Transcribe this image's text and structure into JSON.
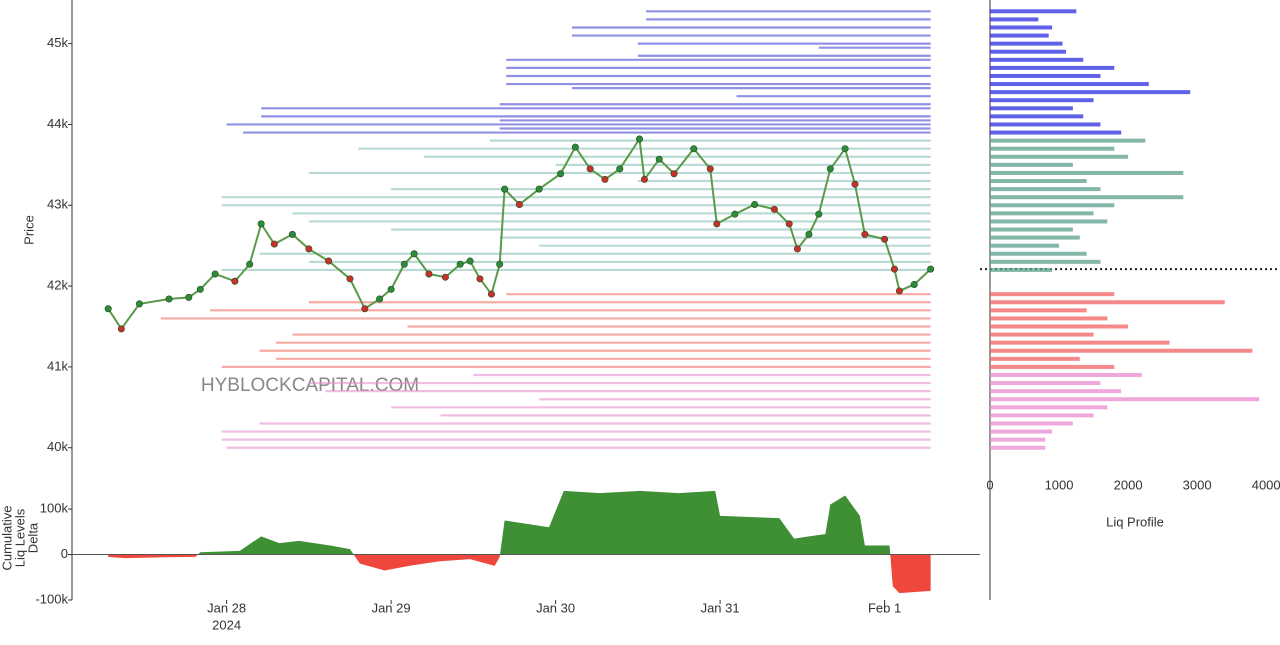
{
  "chart_data": [
    {
      "type": "line",
      "ylabel": "Price",
      "watermark": "HYBLOCKCAPITAL.COM",
      "xlim": [
        27.06,
        32.58
      ],
      "ylim": [
        39910,
        45540
      ],
      "xticks": [
        {
          "value": 28,
          "label": "Jan 28"
        },
        {
          "value": 29,
          "label": "Jan 29"
        },
        {
          "value": 30,
          "label": "Jan 30"
        },
        {
          "value": 31,
          "label": "Jan 31"
        },
        {
          "value": 32,
          "label": "Feb 1"
        }
      ],
      "x_sublabel": "2024",
      "yticks": [
        {
          "value": 40000,
          "label": "40k"
        },
        {
          "value": 41000,
          "label": "41k"
        },
        {
          "value": 42000,
          "label": "42k"
        },
        {
          "value": 43000,
          "label": "43k"
        },
        {
          "value": 44000,
          "label": "44k"
        },
        {
          "value": 45000,
          "label": "45k"
        }
      ],
      "x": [
        27.28,
        27.36,
        27.47,
        27.65,
        27.77,
        27.84,
        27.93,
        28.05,
        28.14,
        28.21,
        28.29,
        28.4,
        28.5,
        28.62,
        28.75,
        28.84,
        28.93,
        29.0,
        29.08,
        29.14,
        29.23,
        29.33,
        29.42,
        29.48,
        29.54,
        29.61,
        29.66,
        29.69,
        29.78,
        29.9,
        30.03,
        30.12,
        30.21,
        30.3,
        30.39,
        30.51,
        30.54,
        30.63,
        30.72,
        30.84,
        30.94,
        30.98,
        31.09,
        31.21,
        31.33,
        31.42,
        31.47,
        31.54,
        31.6,
        31.67,
        31.76,
        31.82,
        31.88,
        32.0,
        32.06,
        32.09,
        32.18,
        32.28
      ],
      "series": [
        {
          "color": "#5a9a4a",
          "values": [
            41720,
            41470,
            41780,
            41840,
            41860,
            41960,
            42150,
            42060,
            42270,
            42770,
            42520,
            42640,
            42460,
            42310,
            42090,
            41720,
            41840,
            41960,
            42270,
            42400,
            42150,
            42110,
            42270,
            42310,
            42090,
            41900,
            42270,
            43200,
            43010,
            43200,
            43390,
            43720,
            43450,
            43320,
            43450,
            43820,
            43320,
            43570,
            43390,
            43700,
            43450,
            42770,
            42890,
            43010,
            42950,
            42770,
            42460,
            42640,
            42890,
            43450,
            43700,
            43260,
            42640,
            42580,
            42210,
            41940,
            42020,
            42210
          ]
        }
      ],
      "liq_levels": [
        {
          "color": "#3434d0",
          "prices": [
            45400,
            45300,
            45200,
            45100,
            45000,
            44950,
            44850,
            44800,
            44700,
            44600,
            44500,
            44450,
            44350,
            44250,
            44200,
            44100,
            44050,
            44000,
            43950,
            43900
          ],
          "starts": [
            30.55,
            30.55,
            30.1,
            30.1,
            30.5,
            31.6,
            30.5,
            29.7,
            29.7,
            29.7,
            29.7,
            30.1,
            31.1,
            29.66,
            28.21,
            28.21,
            29.66,
            28.0,
            29.66,
            28.1
          ]
        },
        {
          "color": "#7fbcb5",
          "prices": [
            43800,
            43700,
            43600,
            43500,
            43400,
            43300,
            43200,
            43100,
            43000,
            42900,
            42800,
            42700,
            42600,
            42500,
            42400,
            42300,
            42200
          ],
          "starts": [
            29.6,
            28.8,
            29.2,
            30.0,
            28.5,
            30.5,
            29.0,
            27.97,
            27.97,
            28.4,
            28.5,
            29.0,
            29.66,
            29.9,
            28.2,
            28.5,
            27.97
          ]
        },
        {
          "color": "#f0665a",
          "prices": [
            41900,
            41800,
            41700,
            41600,
            41500,
            41400,
            41300,
            41200,
            41100,
            41000
          ],
          "starts": [
            29.7,
            28.5,
            27.9,
            27.6,
            29.1,
            28.4,
            28.3,
            28.2,
            28.3,
            27.97
          ]
        },
        {
          "color": "#e886cc",
          "prices": [
            40900,
            40800,
            40700,
            40600,
            40500,
            40400,
            40300,
            40200,
            40100,
            40000
          ],
          "starts": [
            29.5,
            28.5,
            28.6,
            29.9,
            29.0,
            29.3,
            28.2,
            27.97,
            27.97,
            28.0
          ]
        }
      ]
    },
    {
      "type": "area",
      "ylabel": [
        "Cumulative",
        "Liq Levels",
        "Delta"
      ],
      "xlim": [
        27.06,
        32.58
      ],
      "ylim": [
        -100000,
        175000
      ],
      "yticks": [
        {
          "value": -100000,
          "label": "-100k"
        },
        0,
        {
          "value": 100000,
          "label": "100k"
        }
      ],
      "x": [
        27.28,
        27.38,
        27.62,
        27.81,
        27.84,
        28.08,
        28.21,
        28.32,
        28.44,
        28.63,
        28.75,
        28.81,
        28.96,
        29.11,
        29.29,
        29.48,
        29.63,
        29.66,
        29.69,
        29.96,
        30.05,
        30.27,
        30.51,
        30.75,
        30.97,
        31.0,
        31.36,
        31.45,
        31.54,
        31.64,
        31.67,
        31.76,
        31.85,
        31.88,
        32.03,
        32.05,
        32.09,
        32.28
      ],
      "values": [
        -5000,
        -8000,
        -6000,
        -5000,
        5000,
        8000,
        40000,
        25000,
        30000,
        20000,
        12000,
        -20000,
        -35000,
        -25000,
        -15000,
        -10000,
        -25000,
        -5000,
        75000,
        60000,
        140000,
        135000,
        140000,
        135000,
        140000,
        85000,
        80000,
        35000,
        40000,
        45000,
        110000,
        130000,
        85000,
        20000,
        20000,
        -70000,
        -85000,
        -80000
      ],
      "colors": {
        "positive": "#3f8f35",
        "negative": "#f0473c"
      }
    },
    {
      "type": "bar",
      "xlabel": "Liq Profile",
      "xlim": [
        0,
        4200
      ],
      "xticks": [
        0,
        1000,
        2000,
        3000,
        4000
      ],
      "groups": [
        {
          "color": "#2c2ce0",
          "prices": [
            45400,
            45300,
            45200,
            45100,
            45000,
            44900,
            44800,
            44700,
            44600,
            44500,
            44400,
            44300,
            44200,
            44100,
            44000,
            43900
          ],
          "values": [
            1250,
            700,
            900,
            850,
            1050,
            1100,
            1350,
            1800,
            1600,
            2300,
            2900,
            1500,
            1200,
            1350,
            1600,
            1900
          ]
        },
        {
          "color": "#5c9e8e",
          "prices": [
            43800,
            43700,
            43600,
            43500,
            43400,
            43300,
            43200,
            43100,
            43000,
            42900,
            42800,
            42700,
            42600,
            42500,
            42400,
            42300,
            42200
          ],
          "values": [
            2250,
            1800,
            2000,
            1200,
            2800,
            1400,
            1600,
            2800,
            1800,
            1500,
            1700,
            1200,
            1300,
            1000,
            1400,
            1600,
            900
          ]
        },
        {
          "color": "#f26060",
          "prices": [
            41900,
            41800,
            41700,
            41600,
            41500,
            41400,
            41300,
            41200,
            41100,
            41000
          ],
          "values": [
            1800,
            3400,
            1400,
            1700,
            2000,
            1500,
            2600,
            3800,
            1300,
            1800
          ]
        },
        {
          "color": "#ea8ad0",
          "prices": [
            40900,
            40800,
            40700,
            40600,
            40500,
            40400,
            40300,
            40200,
            40100,
            40000
          ],
          "values": [
            2200,
            1600,
            1900,
            3900,
            1700,
            1500,
            1200,
            900,
            800,
            800
          ]
        }
      ]
    }
  ]
}
